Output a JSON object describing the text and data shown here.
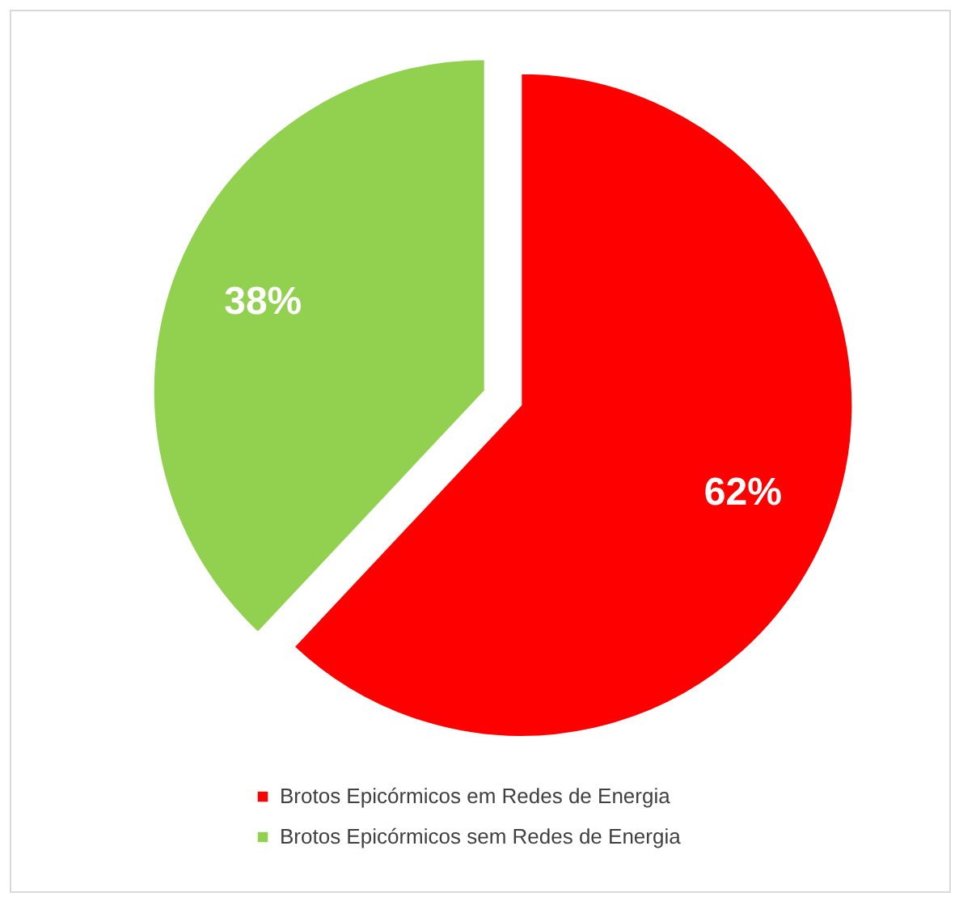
{
  "chart_data": {
    "type": "pie",
    "categories": [
      "Brotos Epicórmicos em Redes de Energia",
      "Brotos Epicórmicos sem Redes de Energia"
    ],
    "values": [
      62,
      38
    ],
    "colors": [
      "#ff0000",
      "#92d050"
    ],
    "value_labels": [
      "62%",
      "38%"
    ],
    "legend": "bottom"
  }
}
